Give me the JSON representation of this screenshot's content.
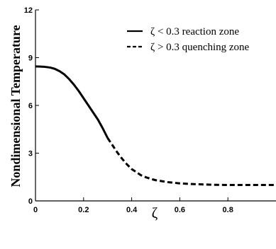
{
  "chart_data": {
    "type": "line",
    "title": "",
    "xlabel": "ζ",
    "ylabel": "Nondimensional Temperature",
    "xlim": [
      0,
      1
    ],
    "ylim": [
      0,
      12
    ],
    "xticks": [
      "0",
      "0.2",
      "0.4",
      "0.6",
      "0.8"
    ],
    "yticks": [
      "0",
      "3",
      "6",
      "9",
      "12"
    ],
    "grid": false,
    "legend_position": "top-right",
    "series": [
      {
        "name": "ζ < 0.3 reaction zone",
        "style": "solid",
        "color": "#000000",
        "x": [
          0.0,
          0.02,
          0.04,
          0.06,
          0.08,
          0.1,
          0.12,
          0.14,
          0.16,
          0.18,
          0.2,
          0.22,
          0.24,
          0.26,
          0.28,
          0.3
        ],
        "y": [
          8.45,
          8.44,
          8.42,
          8.38,
          8.3,
          8.15,
          7.95,
          7.65,
          7.3,
          6.9,
          6.45,
          6.0,
          5.55,
          5.1,
          4.55,
          3.95
        ]
      },
      {
        "name": "ζ > 0.3 quenching zone",
        "style": "dashed",
        "color": "#000000",
        "x": [
          0.3,
          0.32,
          0.34,
          0.36,
          0.38,
          0.4,
          0.42,
          0.44,
          0.46,
          0.48,
          0.5,
          0.55,
          0.6,
          0.65,
          0.7,
          0.75,
          0.8,
          0.85,
          0.9,
          0.95,
          1.0
        ],
        "y": [
          3.95,
          3.5,
          3.05,
          2.65,
          2.3,
          2.0,
          1.8,
          1.6,
          1.48,
          1.38,
          1.3,
          1.18,
          1.1,
          1.06,
          1.03,
          1.01,
          1.0,
          1.0,
          1.0,
          1.0,
          1.0
        ]
      }
    ]
  }
}
